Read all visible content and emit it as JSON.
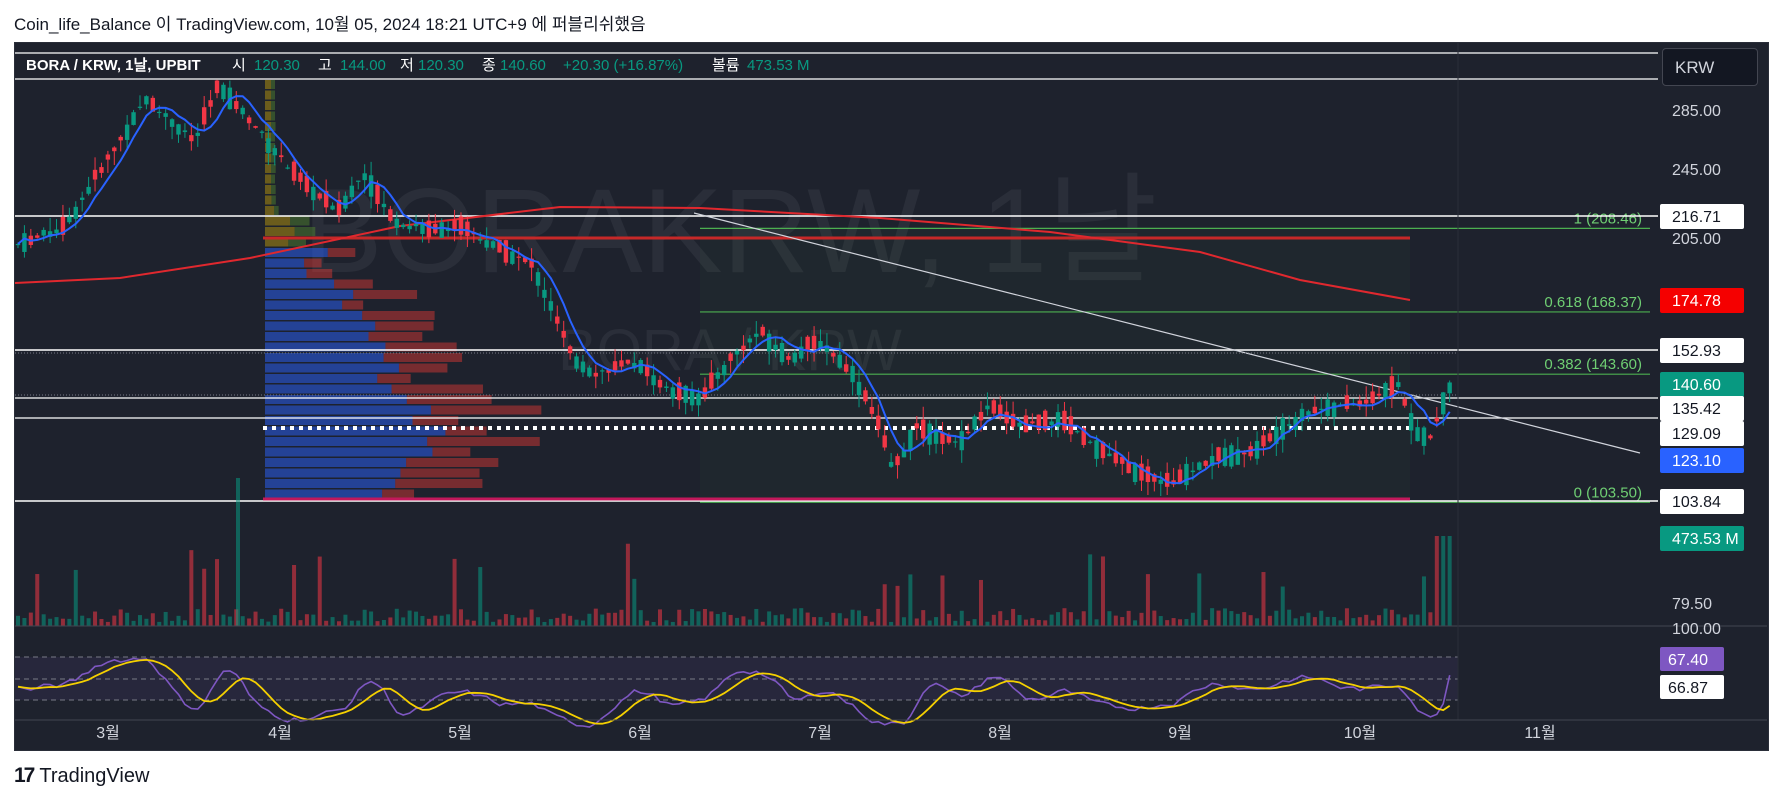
{
  "caption": "Coin_life_Balance 이 TradingView.com, 10월 05, 2024 18:21 UTC+9 에 퍼블리쉬했음",
  "currency_button": "KRW",
  "watermark": {
    "main": "BORAKRW, 1날",
    "sub": "BORA / KRW"
  },
  "legend": {
    "symbol": "BORA / KRW, 1날, UPBIT",
    "open_label": "시",
    "open": "120.30",
    "high_label": "고",
    "high": "144.00",
    "low_label": "저",
    "low": "120.30",
    "close_label": "종",
    "close": "140.60",
    "change": "+20.30 (+16.87%)",
    "volume_label": "볼륨",
    "volume": "473.53 M"
  },
  "colors": {
    "background": "#1e222d",
    "up": "#089981",
    "down": "#f23645",
    "ma_short": "#2962ff",
    "ma_long": "#e0282e",
    "rsi": "#7e57c2",
    "rsi_ma": "#f5d000",
    "fib": "#4caf50"
  },
  "price_axis": {
    "ticks": [
      "285.00",
      "245.00",
      "205.00",
      "79.50"
    ]
  },
  "price_labels": [
    {
      "value": "216.71",
      "style": "white"
    },
    {
      "value": "174.78",
      "style": "red"
    },
    {
      "value": "152.93",
      "style": "white"
    },
    {
      "value": "140.60",
      "style": "green"
    },
    {
      "value": "135.42",
      "style": "white"
    },
    {
      "value": "129.09",
      "style": "white"
    },
    {
      "value": "123.10",
      "style": "blue"
    },
    {
      "value": "103.84",
      "style": "white"
    },
    {
      "value": "473.53 M",
      "style": "green"
    }
  ],
  "fib_levels": [
    {
      "ratio": "1",
      "price": 208.46,
      "label": "1 (208.46)"
    },
    {
      "ratio": "0.618",
      "price": 168.37,
      "label": "0.618 (168.37)"
    },
    {
      "ratio": "0.382",
      "price": 143.6,
      "label": "0.382 (143.60)"
    },
    {
      "ratio": "0",
      "price": 103.5,
      "label": "0 (103.50)"
    }
  ],
  "rsi_axis": {
    "top": "100.00",
    "value": "67.40",
    "ma_value": "66.87"
  },
  "time_axis": [
    "3월",
    "4월",
    "5월",
    "6월",
    "7월",
    "8월",
    "9월",
    "10월",
    "11월"
  ],
  "chart_data": {
    "type": "candlestick",
    "symbol": "BORA/KRW",
    "exchange": "UPBIT",
    "interval": "1D",
    "last": {
      "open": 120.3,
      "high": 144.0,
      "low": 120.3,
      "close": 140.6,
      "change": 20.3,
      "change_pct": 16.87,
      "volume_m": 473.53
    },
    "ohlc_monthly": [
      {
        "month": "3월",
        "open": 205,
        "high": 300,
        "low": 195,
        "close": 285
      },
      {
        "month": "4월",
        "open": 285,
        "high": 300,
        "low": 240,
        "close": 245
      },
      {
        "month": "5월",
        "open": 245,
        "high": 255,
        "low": 198,
        "close": 205
      },
      {
        "month": "6월",
        "open": 205,
        "high": 212,
        "low": 130,
        "close": 140
      },
      {
        "month": "7월",
        "open": 140,
        "high": 160,
        "low": 126,
        "close": 148
      },
      {
        "month": "8월",
        "open": 148,
        "high": 152,
        "low": 104,
        "close": 118
      },
      {
        "month": "9월",
        "open": 118,
        "high": 138,
        "low": 103.5,
        "close": 128
      },
      {
        "month": "10월",
        "open": 128,
        "high": 144,
        "low": 119,
        "close": 140.6
      }
    ],
    "ma_short_last": 123.1,
    "ma_long_last": 174.78,
    "horizontal_levels": [
      216.71,
      152.93,
      135.42,
      129.09,
      103.84
    ],
    "fibonacci": [
      {
        "ratio": 1,
        "price": 208.46
      },
      {
        "ratio": 0.618,
        "price": 168.37
      },
      {
        "ratio": 0.382,
        "price": 143.6
      },
      {
        "ratio": 0,
        "price": 103.5
      }
    ],
    "rsi": {
      "value": 67.4,
      "ma": 66.87
    },
    "y_ticks": [
      285.0,
      245.0,
      205.0,
      79.5
    ]
  }
}
